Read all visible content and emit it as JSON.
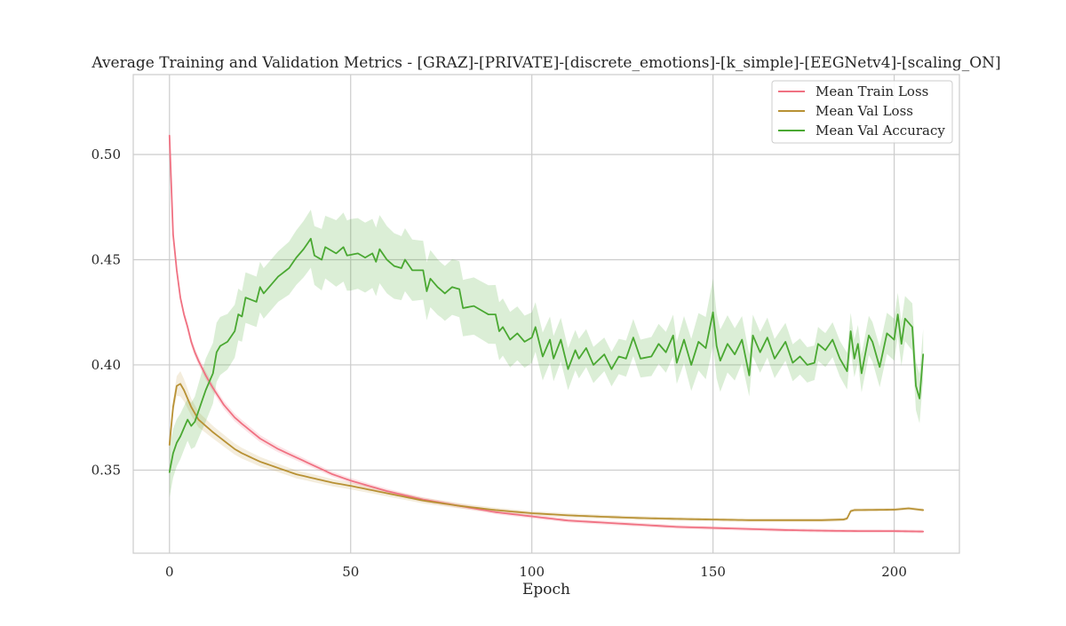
{
  "chart_data": {
    "type": "line",
    "title": "Average Training and Validation Metrics - [GRAZ]-[PRIVATE]-[discrete_emotions]-[k_simple]-[EEGNetv4]-[scaling_ON]",
    "xlabel": "Epoch",
    "ylabel": "",
    "xlim": [
      -10,
      218
    ],
    "ylim": [
      0.3105,
      0.538
    ],
    "xticks": [
      0,
      50,
      100,
      150,
      200
    ],
    "yticks": [
      0.35,
      0.4,
      0.45,
      0.5
    ],
    "xtick_labels": [
      "0",
      "50",
      "100",
      "150",
      "200"
    ],
    "ytick_labels": [
      "0.35",
      "0.40",
      "0.45",
      "0.50"
    ],
    "grid": true,
    "legend_position": "upper right",
    "epochs": 209,
    "series": [
      {
        "name": "Mean Train Loss",
        "color": "#f07182",
        "band_color": "#f07182",
        "key_points": [
          [
            0,
            0.509
          ],
          [
            1,
            0.462
          ],
          [
            2,
            0.445
          ],
          [
            3,
            0.432
          ],
          [
            4,
            0.424
          ],
          [
            5,
            0.418
          ],
          [
            6,
            0.411
          ],
          [
            7,
            0.406
          ],
          [
            8,
            0.402
          ],
          [
            10,
            0.395
          ],
          [
            12,
            0.389
          ],
          [
            15,
            0.381
          ],
          [
            18,
            0.375
          ],
          [
            20,
            0.372
          ],
          [
            25,
            0.365
          ],
          [
            30,
            0.36
          ],
          [
            35,
            0.356
          ],
          [
            40,
            0.352
          ],
          [
            45,
            0.348
          ],
          [
            50,
            0.345
          ],
          [
            60,
            0.34
          ],
          [
            70,
            0.336
          ],
          [
            80,
            0.333
          ],
          [
            90,
            0.33
          ],
          [
            100,
            0.328
          ],
          [
            110,
            0.326
          ],
          [
            120,
            0.325
          ],
          [
            130,
            0.324
          ],
          [
            140,
            0.323
          ],
          [
            150,
            0.3225
          ],
          [
            160,
            0.322
          ],
          [
            170,
            0.3215
          ],
          [
            180,
            0.3212
          ],
          [
            190,
            0.321
          ],
          [
            200,
            0.321
          ],
          [
            208,
            0.3208
          ]
        ],
        "band_points": [
          [
            0,
            0.001
          ],
          [
            5,
            0.002
          ],
          [
            10,
            0.002
          ],
          [
            20,
            0.0018
          ],
          [
            40,
            0.0013
          ],
          [
            80,
            0.001
          ],
          [
            208,
            0.0008
          ]
        ]
      },
      {
        "name": "Mean Val Loss",
        "color": "#b89134",
        "band_color": "#c9a453",
        "key_points": [
          [
            0,
            0.362
          ],
          [
            1,
            0.38
          ],
          [
            2,
            0.39
          ],
          [
            3,
            0.391
          ],
          [
            4,
            0.388
          ],
          [
            5,
            0.384
          ],
          [
            6,
            0.38
          ],
          [
            7,
            0.377
          ],
          [
            8,
            0.374
          ],
          [
            10,
            0.371
          ],
          [
            12,
            0.368
          ],
          [
            15,
            0.364
          ],
          [
            18,
            0.36
          ],
          [
            20,
            0.358
          ],
          [
            25,
            0.354
          ],
          [
            30,
            0.351
          ],
          [
            35,
            0.348
          ],
          [
            40,
            0.346
          ],
          [
            45,
            0.344
          ],
          [
            50,
            0.3425
          ],
          [
            60,
            0.339
          ],
          [
            70,
            0.3355
          ],
          [
            80,
            0.333
          ],
          [
            90,
            0.331
          ],
          [
            100,
            0.3295
          ],
          [
            110,
            0.3285
          ],
          [
            120,
            0.3278
          ],
          [
            130,
            0.3272
          ],
          [
            140,
            0.3268
          ],
          [
            150,
            0.3265
          ],
          [
            160,
            0.3262
          ],
          [
            170,
            0.3262
          ],
          [
            180,
            0.3262
          ],
          [
            186,
            0.3265
          ],
          [
            187,
            0.327
          ],
          [
            188,
            0.3305
          ],
          [
            189,
            0.331
          ],
          [
            200,
            0.3312
          ],
          [
            204,
            0.3318
          ],
          [
            208,
            0.331
          ]
        ],
        "band_points": [
          [
            0,
            0.002
          ],
          [
            3,
            0.006
          ],
          [
            6,
            0.004
          ],
          [
            12,
            0.003
          ],
          [
            30,
            0.002
          ],
          [
            60,
            0.0015
          ],
          [
            100,
            0.001
          ],
          [
            208,
            0.0008
          ]
        ]
      },
      {
        "name": "Mean Val Accuracy",
        "color": "#4aa832",
        "band_color": "#4aa832",
        "key_points": [
          [
            0,
            0.349
          ],
          [
            1,
            0.358
          ],
          [
            2,
            0.363
          ],
          [
            3,
            0.366
          ],
          [
            4,
            0.37
          ],
          [
            5,
            0.374
          ],
          [
            6,
            0.371
          ],
          [
            7,
            0.373
          ],
          [
            8,
            0.378
          ],
          [
            10,
            0.388
          ],
          [
            12,
            0.396
          ],
          [
            13,
            0.406
          ],
          [
            14,
            0.409
          ],
          [
            16,
            0.411
          ],
          [
            18,
            0.416
          ],
          [
            19,
            0.424
          ],
          [
            20,
            0.423
          ],
          [
            21,
            0.432
          ],
          [
            24,
            0.43
          ],
          [
            25,
            0.437
          ],
          [
            26,
            0.434
          ],
          [
            30,
            0.442
          ],
          [
            33,
            0.446
          ],
          [
            35,
            0.451
          ],
          [
            37,
            0.455
          ],
          [
            39,
            0.46
          ],
          [
            40,
            0.452
          ],
          [
            42,
            0.45
          ],
          [
            43,
            0.456
          ],
          [
            46,
            0.453
          ],
          [
            48,
            0.456
          ],
          [
            49,
            0.452
          ],
          [
            52,
            0.453
          ],
          [
            54,
            0.451
          ],
          [
            56,
            0.453
          ],
          [
            57,
            0.449
          ],
          [
            58,
            0.455
          ],
          [
            60,
            0.45
          ],
          [
            62,
            0.447
          ],
          [
            64,
            0.446
          ],
          [
            65,
            0.45
          ],
          [
            67,
            0.445
          ],
          [
            70,
            0.445
          ],
          [
            71,
            0.435
          ],
          [
            72,
            0.441
          ],
          [
            74,
            0.437
          ],
          [
            76,
            0.434
          ],
          [
            78,
            0.437
          ],
          [
            80,
            0.436
          ],
          [
            81,
            0.427
          ],
          [
            84,
            0.428
          ],
          [
            85,
            0.427
          ],
          [
            88,
            0.424
          ],
          [
            90,
            0.424
          ],
          [
            91,
            0.416
          ],
          [
            92,
            0.418
          ],
          [
            94,
            0.412
          ],
          [
            96,
            0.415
          ],
          [
            98,
            0.411
          ],
          [
            100,
            0.413
          ],
          [
            101,
            0.418
          ],
          [
            103,
            0.404
          ],
          [
            105,
            0.412
          ],
          [
            106,
            0.403
          ],
          [
            108,
            0.412
          ],
          [
            110,
            0.398
          ],
          [
            112,
            0.407
          ],
          [
            113,
            0.403
          ],
          [
            115,
            0.408
          ],
          [
            117,
            0.4
          ],
          [
            120,
            0.405
          ],
          [
            122,
            0.398
          ],
          [
            124,
            0.404
          ],
          [
            126,
            0.403
          ],
          [
            128,
            0.413
          ],
          [
            130,
            0.403
          ],
          [
            133,
            0.404
          ],
          [
            135,
            0.41
          ],
          [
            137,
            0.406
          ],
          [
            139,
            0.414
          ],
          [
            140,
            0.401
          ],
          [
            142,
            0.412
          ],
          [
            144,
            0.4
          ],
          [
            146,
            0.411
          ],
          [
            148,
            0.408
          ],
          [
            150,
            0.425
          ],
          [
            151,
            0.409
          ],
          [
            152,
            0.402
          ],
          [
            154,
            0.41
          ],
          [
            156,
            0.405
          ],
          [
            158,
            0.412
          ],
          [
            160,
            0.395
          ],
          [
            161,
            0.414
          ],
          [
            163,
            0.406
          ],
          [
            165,
            0.413
          ],
          [
            167,
            0.403
          ],
          [
            170,
            0.411
          ],
          [
            172,
            0.401
          ],
          [
            174,
            0.404
          ],
          [
            176,
            0.4
          ],
          [
            178,
            0.401
          ],
          [
            179,
            0.41
          ],
          [
            181,
            0.407
          ],
          [
            183,
            0.412
          ],
          [
            185,
            0.403
          ],
          [
            187,
            0.397
          ],
          [
            188,
            0.416
          ],
          [
            189,
            0.403
          ],
          [
            190,
            0.41
          ],
          [
            191,
            0.396
          ],
          [
            193,
            0.414
          ],
          [
            194,
            0.411
          ],
          [
            196,
            0.399
          ],
          [
            198,
            0.415
          ],
          [
            200,
            0.412
          ],
          [
            201,
            0.424
          ],
          [
            202,
            0.41
          ],
          [
            203,
            0.422
          ],
          [
            205,
            0.418
          ],
          [
            206,
            0.39
          ],
          [
            207,
            0.384
          ],
          [
            208,
            0.405
          ]
        ],
        "band_points": [
          [
            0,
            0.012
          ],
          [
            5,
            0.01
          ],
          [
            10,
            0.015
          ],
          [
            20,
            0.012
          ],
          [
            30,
            0.012
          ],
          [
            40,
            0.014
          ],
          [
            50,
            0.017
          ],
          [
            60,
            0.016
          ],
          [
            75,
            0.013
          ],
          [
            90,
            0.014
          ],
          [
            100,
            0.012
          ],
          [
            120,
            0.008
          ],
          [
            140,
            0.01
          ],
          [
            150,
            0.016
          ],
          [
            160,
            0.01
          ],
          [
            180,
            0.008
          ],
          [
            200,
            0.01
          ],
          [
            208,
            0.012
          ]
        ]
      }
    ]
  }
}
